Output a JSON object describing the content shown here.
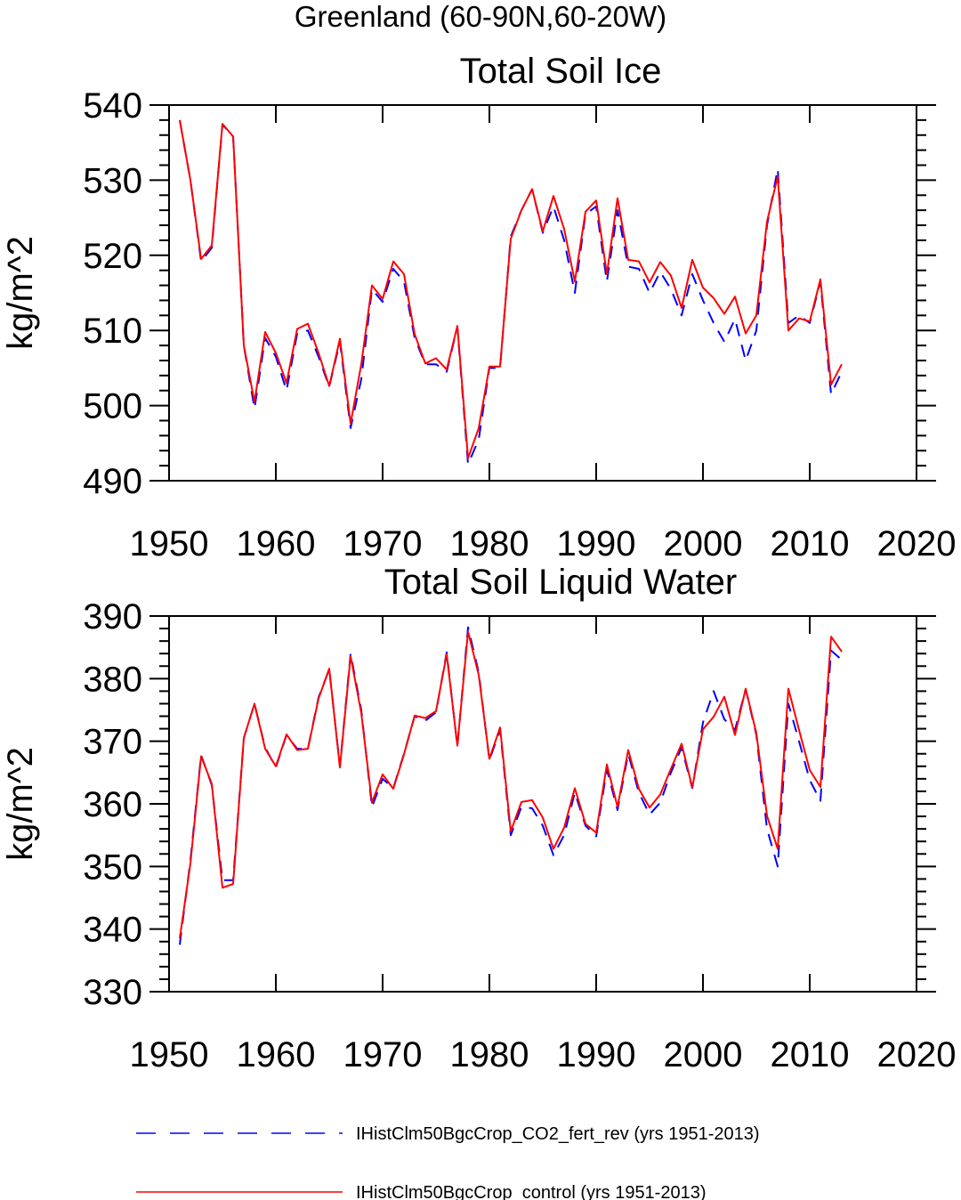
{
  "figure": {
    "title": "Greenland (60-90N,60-20W)"
  },
  "legend": {
    "position": "bottom",
    "entries": [
      {
        "label": "IHistClm50BgcCrop_CO2_fert_rev (yrs 1951-2013)",
        "color": "#0000ff",
        "style": "dashed"
      },
      {
        "label": "IHistClm50BgcCrop_control (yrs 1951-2013)",
        "color": "#ff0000",
        "style": "solid"
      }
    ]
  },
  "chart_data": [
    {
      "type": "line",
      "title": "Total Soil Ice",
      "xlabel": "",
      "ylabel": "kg/m^2",
      "xlim": [
        1950,
        2020
      ],
      "ylim": [
        490,
        540
      ],
      "xticks": [
        1950,
        1960,
        1970,
        1980,
        1990,
        2000,
        2010,
        2020
      ],
      "yticks": [
        490,
        500,
        510,
        520,
        530,
        540
      ],
      "grid": false,
      "x": [
        1951,
        1952,
        1953,
        1954,
        1955,
        1956,
        1957,
        1958,
        1959,
        1960,
        1961,
        1962,
        1963,
        1964,
        1965,
        1966,
        1967,
        1968,
        1969,
        1970,
        1971,
        1972,
        1973,
        1974,
        1975,
        1976,
        1977,
        1978,
        1979,
        1980,
        1981,
        1982,
        1983,
        1984,
        1985,
        1986,
        1987,
        1988,
        1989,
        1990,
        1991,
        1992,
        1993,
        1994,
        1995,
        1996,
        1997,
        1998,
        1999,
        2000,
        2001,
        2002,
        2003,
        2004,
        2005,
        2006,
        2007,
        2008,
        2009,
        2010,
        2011,
        2012,
        2013
      ],
      "series": [
        {
          "name": "IHistClm50BgcCrop_CO2_fert_rev (yrs 1951-2013)",
          "color": "#0000ff",
          "style": "dashed",
          "values": [
            538,
            530,
            519.2,
            521,
            537.4,
            535.8,
            508,
            499.6,
            509,
            506.5,
            502,
            509.6,
            510,
            506.5,
            502.5,
            508.5,
            497,
            503.5,
            515.5,
            513.8,
            518.2,
            516.5,
            509,
            505.5,
            505.5,
            504.5,
            510.5,
            492.2,
            495.5,
            505,
            505,
            522.5,
            526,
            528.8,
            523,
            526.5,
            522,
            515,
            525.5,
            526.5,
            516.5,
            526,
            518.5,
            518.2,
            515,
            517.8,
            515.5,
            512,
            517.5,
            514,
            511,
            508.5,
            511.5,
            506,
            510,
            524,
            531.5,
            511,
            512,
            511,
            516.5,
            501.5,
            504.5
          ]
        },
        {
          "name": "IHistClm50BgcCrop_control (yrs 1951-2013)",
          "color": "#ff0000",
          "style": "solid",
          "values": [
            538,
            530,
            519.5,
            521.3,
            537.5,
            535.8,
            508,
            500.5,
            509.8,
            507,
            503,
            510.2,
            510.9,
            507,
            502.6,
            508.9,
            497.6,
            505.5,
            516,
            514.2,
            519.2,
            517.5,
            509.5,
            505.6,
            506.3,
            504.8,
            510.6,
            493,
            497,
            505.2,
            505.2,
            522.2,
            526,
            528.8,
            523.2,
            527.9,
            523.5,
            516.5,
            525.8,
            527.3,
            517.5,
            527.6,
            519.4,
            519.2,
            516.4,
            519.1,
            517.3,
            513,
            519.4,
            515.7,
            514.3,
            512.2,
            514.5,
            509.6,
            512,
            524.5,
            530.5,
            510,
            511.6,
            511.2,
            516.8,
            502.8,
            505.5
          ]
        }
      ]
    },
    {
      "type": "line",
      "title": "Total Soil Liquid Water",
      "xlabel": "",
      "ylabel": "kg/m^2",
      "xlim": [
        1950,
        2020
      ],
      "ylim": [
        330,
        390
      ],
      "xticks": [
        1950,
        1960,
        1970,
        1980,
        1990,
        2000,
        2010,
        2020
      ],
      "yticks": [
        330,
        340,
        350,
        360,
        370,
        380,
        390
      ],
      "grid": false,
      "x": [
        1951,
        1952,
        1953,
        1954,
        1955,
        1956,
        1957,
        1958,
        1959,
        1960,
        1961,
        1962,
        1963,
        1964,
        1965,
        1966,
        1967,
        1968,
        1969,
        1970,
        1971,
        1972,
        1973,
        1974,
        1975,
        1976,
        1977,
        1978,
        1979,
        1980,
        1981,
        1982,
        1983,
        1984,
        1985,
        1986,
        1987,
        1988,
        1989,
        1990,
        1991,
        1992,
        1993,
        1994,
        1995,
        1996,
        1997,
        1998,
        1999,
        2000,
        2001,
        2002,
        2003,
        2004,
        2005,
        2006,
        2007,
        2008,
        2009,
        2010,
        2011,
        2012,
        2013
      ],
      "series": [
        {
          "name": "IHistClm50BgcCrop_CO2_fert_rev (yrs 1951-2013)",
          "color": "#0000ff",
          "style": "dashed",
          "values": [
            337.5,
            351,
            367.8,
            363,
            347.8,
            347.8,
            370.5,
            376,
            369,
            365.8,
            371,
            368.8,
            368.8,
            377,
            381.5,
            366,
            384,
            375,
            359.5,
            364,
            362.5,
            368,
            374,
            373.3,
            374.6,
            384.2,
            369.2,
            388.2,
            381,
            367,
            371.8,
            355,
            359.5,
            359.3,
            356.5,
            351.8,
            355,
            361.8,
            356.5,
            354.8,
            365.5,
            359,
            368,
            361.8,
            358.3,
            360.2,
            365,
            369,
            362.5,
            373,
            378,
            373.5,
            371.8,
            378.3,
            371,
            356,
            350,
            376,
            370,
            363.8,
            360.5,
            384.5,
            383
          ]
        },
        {
          "name": "IHistClm50BgcCrop_control (yrs 1951-2013)",
          "color": "#ff0000",
          "style": "solid",
          "values": [
            338.5,
            350.5,
            367.6,
            363.2,
            346.6,
            347.2,
            370.5,
            376,
            368.8,
            366,
            371.1,
            368.6,
            368.8,
            376.8,
            381.6,
            365.8,
            383.6,
            374.5,
            360.2,
            364.7,
            362.4,
            367.9,
            374.1,
            373.7,
            374.8,
            383.9,
            369.3,
            387.5,
            380.6,
            367.2,
            372.2,
            355.6,
            360.3,
            360.6,
            357.8,
            352.8,
            356.2,
            362.5,
            356.8,
            355.4,
            366.3,
            359.5,
            368.6,
            362.4,
            359.4,
            361.5,
            365.6,
            369.6,
            362.6,
            371.9,
            373.9,
            377.1,
            371,
            378.4,
            371.3,
            358.1,
            352.8,
            378.4,
            371.8,
            365.4,
            362.7,
            386.7,
            384.3
          ]
        }
      ]
    }
  ]
}
